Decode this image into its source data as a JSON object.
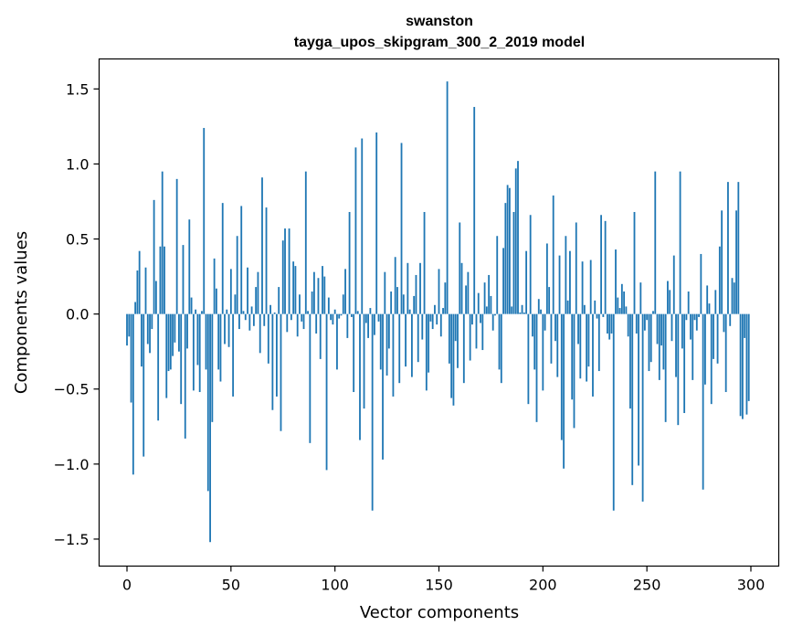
{
  "chart_data": {
    "type": "bar",
    "title": "swanston",
    "subtitle": "tayga_upos_skipgram_300_2_2019 model",
    "xlabel": "Vector components",
    "ylabel": "Components values",
    "xlim": [
      -13.4,
      313.4
    ],
    "ylim": [
      -1.68,
      1.7
    ],
    "xticks": [
      0,
      50,
      100,
      150,
      200,
      250,
      300
    ],
    "xtick_labels": [
      "0",
      "50",
      "100",
      "150",
      "200",
      "250",
      "300"
    ],
    "yticks": [
      -1.5,
      -1.0,
      -0.5,
      0.0,
      0.5,
      1.0,
      1.5
    ],
    "ytick_labels": [
      "−1.5",
      "−1.0",
      "−0.5",
      "0.0",
      "0.5",
      "1.0",
      "1.5"
    ],
    "bar_color": "#1f77b4",
    "grid": false,
    "values": [
      -0.21,
      -0.15,
      -0.59,
      -1.07,
      0.08,
      0.29,
      0.42,
      -0.35,
      -0.95,
      0.31,
      -0.2,
      -0.26,
      -0.1,
      0.76,
      0.22,
      -0.71,
      0.45,
      0.95,
      0.45,
      -0.56,
      -0.38,
      -0.37,
      -0.28,
      -0.19,
      0.9,
      -0.25,
      -0.6,
      0.46,
      -0.83,
      -0.23,
      0.63,
      0.11,
      -0.51,
      0.03,
      -0.34,
      -0.52,
      0.02,
      1.24,
      -0.37,
      -1.18,
      -1.52,
      -0.72,
      0.37,
      0.17,
      -0.37,
      -0.45,
      0.74,
      -0.2,
      0.03,
      -0.22,
      0.3,
      -0.55,
      0.13,
      0.52,
      -0.1,
      0.72,
      0.02,
      -0.04,
      0.31,
      -0.11,
      0.05,
      -0.08,
      0.18,
      0.28,
      -0.26,
      0.91,
      -0.08,
      0.71,
      -0.33,
      0.06,
      -0.64,
      0.01,
      -0.55,
      0.18,
      -0.78,
      0.49,
      0.57,
      -0.12,
      0.57,
      -0.04,
      0.35,
      0.32,
      -0.15,
      0.13,
      -0.05,
      -0.1,
      0.95,
      0.02,
      -0.86,
      0.15,
      0.28,
      -0.13,
      0.24,
      -0.3,
      0.32,
      0.25,
      -1.04,
      0.11,
      -0.04,
      -0.07,
      0.03,
      -0.37,
      -0.03,
      -0.01,
      0.13,
      0.3,
      -0.16,
      0.68,
      -0.02,
      -0.52,
      1.11,
      0.02,
      -0.84,
      1.17,
      -0.63,
      -0.06,
      -0.16,
      0.04,
      -1.31,
      -0.14,
      1.21,
      -0.05,
      -0.37,
      -0.97,
      0.28,
      -0.41,
      -0.23,
      0.15,
      -0.55,
      0.38,
      0.18,
      -0.46,
      1.14,
      0.13,
      -0.35,
      0.34,
      0.03,
      -0.42,
      0.12,
      0.26,
      -0.32,
      0.34,
      -0.17,
      0.68,
      -0.51,
      -0.39,
      -0.05,
      -0.1,
      0.06,
      -0.07,
      0.3,
      -0.15,
      0.04,
      0.21,
      1.55,
      -0.33,
      -0.56,
      -0.61,
      -0.18,
      -0.36,
      0.61,
      0.34,
      -0.46,
      0.19,
      0.28,
      -0.31,
      -0.07,
      1.38,
      -0.23,
      0.14,
      -0.06,
      -0.24,
      0.21,
      0.05,
      0.26,
      0.12,
      -0.11,
      -0.01,
      0.52,
      -0.37,
      -0.46,
      0.44,
      0.74,
      0.86,
      0.84,
      0.05,
      0.68,
      0.97,
      1.02,
      0.01,
      0.06,
      0.01,
      0.42,
      -0.6,
      0.66,
      -0.15,
      -0.37,
      -0.72,
      0.1,
      0.03,
      -0.51,
      -0.11,
      0.47,
      0.18,
      -0.33,
      0.79,
      -0.18,
      -0.42,
      0.39,
      -0.84,
      -1.03,
      0.52,
      0.09,
      0.42,
      -0.57,
      -0.76,
      0.61,
      -0.2,
      -0.43,
      0.35,
      0.06,
      -0.45,
      -0.35,
      0.36,
      -0.55,
      0.09,
      -0.03,
      -0.38,
      0.66,
      -0.02,
      0.62,
      -0.13,
      -0.17,
      -0.13,
      -1.31,
      0.43,
      0.11,
      0.04,
      0.2,
      0.15,
      0.05,
      -0.15,
      -0.63,
      -1.14,
      0.68,
      -0.13,
      -1.01,
      0.21,
      -1.25,
      -0.11,
      -0.04,
      -0.38,
      -0.32,
      0.02,
      0.95,
      -0.2,
      -0.44,
      -0.21,
      -0.37,
      -0.72,
      0.22,
      0.16,
      -0.18,
      0.39,
      -0.42,
      -0.74,
      0.95,
      -0.23,
      -0.66,
      -0.04,
      0.15,
      -0.17,
      -0.44,
      -0.04,
      -0.11,
      -0.02,
      0.4,
      -1.17,
      -0.47,
      0.19,
      0.07,
      -0.6,
      -0.3,
      0.16,
      -0.33,
      0.45,
      0.69,
      -0.12,
      -0.52,
      0.88,
      -0.08,
      0.24,
      0.21,
      0.69,
      0.88,
      -0.68,
      -0.7,
      -0.16,
      -0.67,
      -0.58
    ]
  }
}
